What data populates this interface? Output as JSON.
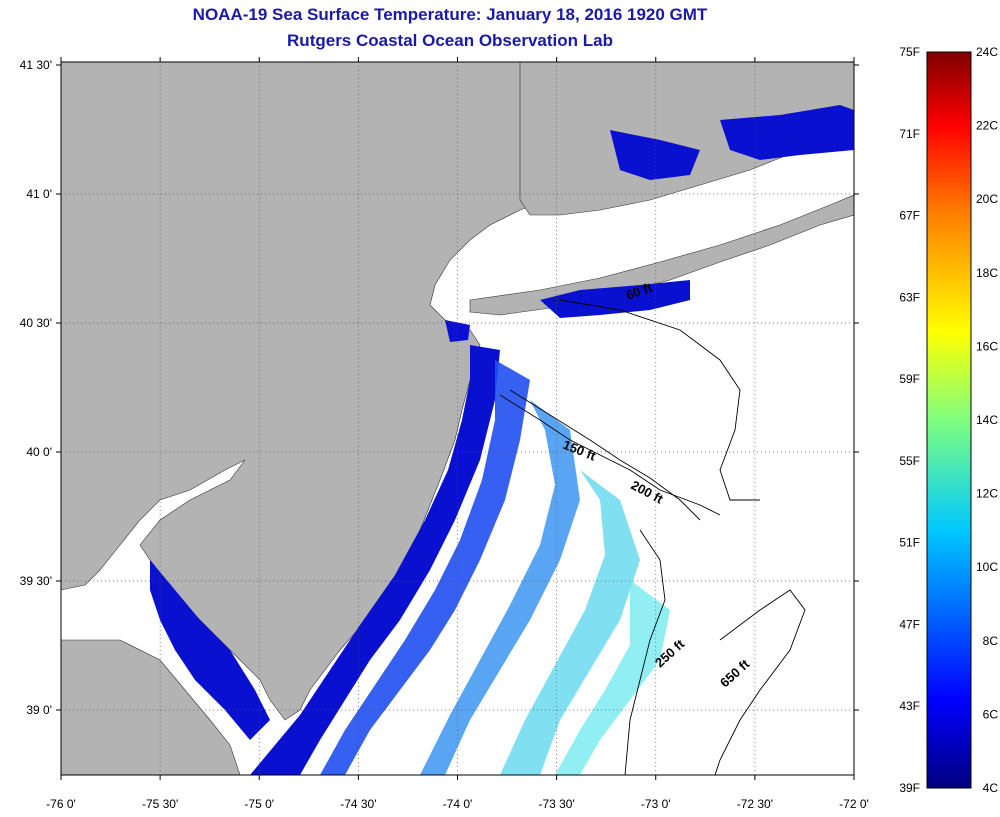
{
  "title": {
    "line1": "NOAA-19 Sea Surface Temperature:  January 18, 2016 1920 GMT",
    "line2": "Rutgers Coastal Ocean Observation Lab"
  },
  "map": {
    "lon_ticks": [
      "-76 0'",
      "-75 30'",
      "-75 0'",
      "-74 30'",
      "-74 0'",
      "-73 30'",
      "-73 0'",
      "-72 30'",
      "-72 0'"
    ],
    "lat_ticks": [
      "41 30'",
      "41 0'",
      "40 30'",
      "40 0'",
      "39 30'",
      "39 0'"
    ],
    "depth_labels": [
      "60 ft",
      "150 ft",
      "200 ft",
      "250 ft",
      "650 ft"
    ],
    "colors": {
      "land": "#b3b3b3",
      "water_nodata": "#ffffff",
      "cold": "#0000c8",
      "cool": "#1e5ef5",
      "mild": "#3fb2f2",
      "warm": "#60e6f0"
    }
  },
  "colorbar": {
    "f_labels": [
      "75F",
      "71F",
      "67F",
      "63F",
      "59F",
      "55F",
      "51F",
      "47F",
      "43F",
      "39F"
    ],
    "c_labels": [
      "24C",
      "22C",
      "20C",
      "18C",
      "16C",
      "14C",
      "12C",
      "10C",
      "8C",
      "6C",
      "4C"
    ],
    "stops": [
      "#00007f",
      "#0000ff",
      "#007fff",
      "#00ffff",
      "#7fff7f",
      "#ffff00",
      "#ff7f00",
      "#ff0000",
      "#7f0000"
    ]
  }
}
